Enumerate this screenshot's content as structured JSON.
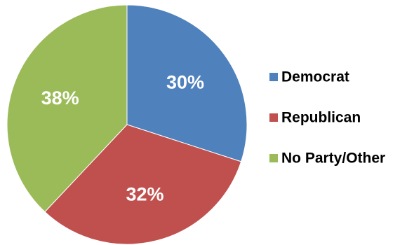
{
  "chart_data": {
    "type": "pie",
    "categories": [
      "Democrat",
      "Republican",
      "No Party/Other"
    ],
    "values": [
      30,
      32,
      38
    ],
    "value_labels": [
      "30%",
      "32%",
      "38%"
    ],
    "colors": [
      "#4F81BD",
      "#C0504D",
      "#9BBB59"
    ],
    "title": "",
    "legend": "right",
    "start_angle": "12 o'clock",
    "direction": "clockwise"
  }
}
